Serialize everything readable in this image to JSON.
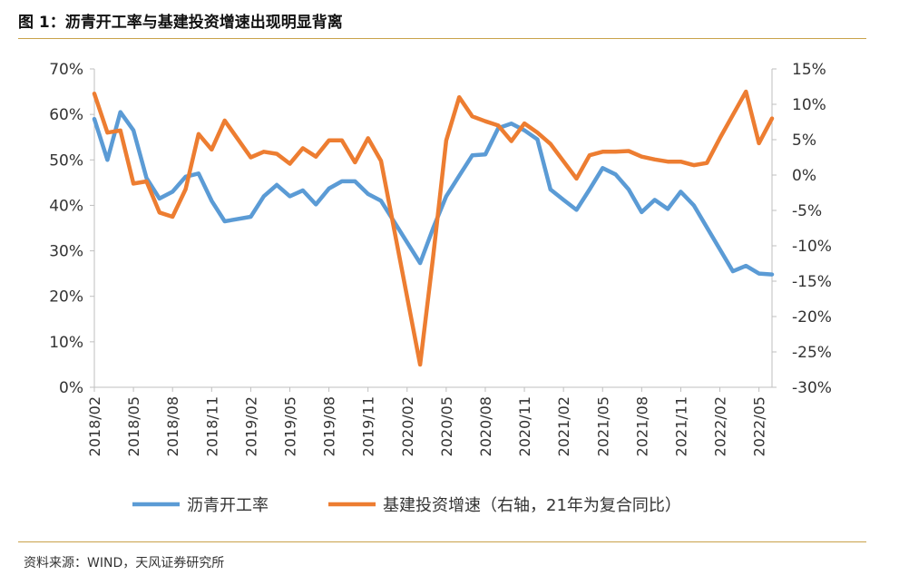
{
  "title": "图 1：沥青开工率与基建投资增速出现明显背离",
  "source": "资料来源：WIND，天风证券研究所",
  "chart_data": {
    "type": "line",
    "x_ticks": [
      "2018/02",
      "2018/05",
      "2018/08",
      "2018/11",
      "2019/02",
      "2019/05",
      "2019/08",
      "2019/11",
      "2020/02",
      "2020/05",
      "2020/08",
      "2020/11",
      "2021/02",
      "2021/05",
      "2021/08",
      "2021/11",
      "2022/02",
      "2022/05"
    ],
    "y_left": {
      "ticks": [
        "0%",
        "10%",
        "20%",
        "30%",
        "40%",
        "50%",
        "60%",
        "70%"
      ],
      "range": [
        0,
        70
      ]
    },
    "y_right": {
      "ticks": [
        "-30%",
        "-25%",
        "-20%",
        "-15%",
        "-10%",
        "-5%",
        "0%",
        "5%",
        "10%",
        "15%"
      ],
      "range": [
        -30,
        15
      ]
    },
    "series": [
      {
        "name": "沥青开工率",
        "axis": "left",
        "color": "#5b9bd5",
        "points": [
          [
            "2018/02",
            59
          ],
          [
            "2018/03",
            50
          ],
          [
            "2018/04",
            60.5
          ],
          [
            "2018/05",
            56.5
          ],
          [
            "2018/06",
            46
          ],
          [
            "2018/07",
            41.5
          ],
          [
            "2018/08",
            43
          ],
          [
            "2018/09",
            46.3
          ],
          [
            "2018/10",
            47
          ],
          [
            "2018/11",
            41
          ],
          [
            "2018/12",
            36.5
          ],
          [
            "2019/02",
            37.5
          ],
          [
            "2019/03",
            42
          ],
          [
            "2019/04",
            44.5
          ],
          [
            "2019/05",
            42
          ],
          [
            "2019/06",
            43.3
          ],
          [
            "2019/07",
            40.2
          ],
          [
            "2019/08",
            43.7
          ],
          [
            "2019/09",
            45.3
          ],
          [
            "2019/10",
            45.3
          ],
          [
            "2019/11",
            42.5
          ],
          [
            "2019/12",
            41
          ],
          [
            "2020/03",
            27.3
          ],
          [
            "2020/04",
            35
          ],
          [
            "2020/05",
            42
          ],
          [
            "2020/06",
            46.5
          ],
          [
            "2020/07",
            51
          ],
          [
            "2020/08",
            51.2
          ],
          [
            "2020/09",
            57
          ],
          [
            "2020/10",
            58
          ],
          [
            "2020/11",
            56.5
          ],
          [
            "2020/12",
            54.5
          ],
          [
            "2021/01",
            43.5
          ],
          [
            "2021/02",
            41.2
          ],
          [
            "2021/03",
            39
          ],
          [
            "2021/04",
            43.5
          ],
          [
            "2021/05",
            48.2
          ],
          [
            "2021/06",
            46.8
          ],
          [
            "2021/07",
            43.5
          ],
          [
            "2021/08",
            38.5
          ],
          [
            "2021/09",
            41.2
          ],
          [
            "2021/10",
            39.2
          ],
          [
            "2021/11",
            43
          ],
          [
            "2021/12",
            40
          ],
          [
            "2022/03",
            25.5
          ],
          [
            "2022/04",
            26.7
          ],
          [
            "2022/05",
            25
          ],
          [
            "2022/06",
            24.8
          ]
        ]
      },
      {
        "name": "基建投资增速（右轴，21年为复合同比）",
        "axis": "right",
        "color": "#ed7d31",
        "points": [
          [
            "2018/02",
            11.5
          ],
          [
            "2018/03",
            6
          ],
          [
            "2018/04",
            6.3
          ],
          [
            "2018/05",
            -1.2
          ],
          [
            "2018/06",
            -0.9
          ],
          [
            "2018/07",
            -5.3
          ],
          [
            "2018/08",
            -5.9
          ],
          [
            "2018/09",
            -2
          ],
          [
            "2018/10",
            5.8
          ],
          [
            "2018/11",
            3.6
          ],
          [
            "2018/12",
            7.7
          ],
          [
            "2019/02",
            2.5
          ],
          [
            "2019/03",
            3.3
          ],
          [
            "2019/04",
            3
          ],
          [
            "2019/05",
            1.6
          ],
          [
            "2019/06",
            3.8
          ],
          [
            "2019/07",
            2.6
          ],
          [
            "2019/08",
            4.9
          ],
          [
            "2019/09",
            4.9
          ],
          [
            "2019/10",
            1.8
          ],
          [
            "2019/11",
            5.2
          ],
          [
            "2019/12",
            2
          ],
          [
            "2020/03",
            -26.8
          ],
          [
            "2020/04",
            -11.5
          ],
          [
            "2020/05",
            4.9
          ],
          [
            "2020/06",
            11
          ],
          [
            "2020/07",
            8.3
          ],
          [
            "2020/08",
            7.6
          ],
          [
            "2020/09",
            7
          ],
          [
            "2020/10",
            4.8
          ],
          [
            "2020/11",
            7.3
          ],
          [
            "2020/12",
            6
          ],
          [
            "2021/01",
            4.4
          ],
          [
            "2021/03",
            -0.5
          ],
          [
            "2021/04",
            2.8
          ],
          [
            "2021/05",
            3.3
          ],
          [
            "2021/06",
            3.3
          ],
          [
            "2021/07",
            3.4
          ],
          [
            "2021/08",
            2.6
          ],
          [
            "2021/09",
            2.2
          ],
          [
            "2021/10",
            1.9
          ],
          [
            "2021/11",
            1.9
          ],
          [
            "2021/12",
            1.4
          ],
          [
            "2022/01",
            1.7
          ],
          [
            "2022/02",
            5.2
          ],
          [
            "2022/03",
            8.5
          ],
          [
            "2022/04",
            11.8
          ],
          [
            "2022/05",
            4.5
          ],
          [
            "2022/06",
            8
          ]
        ]
      }
    ]
  }
}
